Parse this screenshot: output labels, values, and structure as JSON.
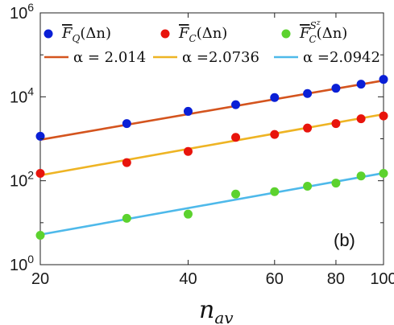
{
  "chart_data": {
    "type": "scatter",
    "scale": {
      "x": "log",
      "y": "log"
    },
    "xlim": [
      20,
      100
    ],
    "ylim": [
      1,
      1000000
    ],
    "xticks": [
      {
        "value": 20,
        "label": "20"
      },
      {
        "value": 40,
        "label": "40"
      },
      {
        "value": 60,
        "label": "60"
      },
      {
        "value": 80,
        "label": "80"
      },
      {
        "value": 100,
        "label": "100"
      }
    ],
    "yticks": [
      {
        "value": 1,
        "base": "10",
        "exp": "0"
      },
      {
        "value": 100,
        "base": "10",
        "exp": "2"
      },
      {
        "value": 10000,
        "base": "10",
        "exp": "4"
      },
      {
        "value": 1000000,
        "base": "10",
        "exp": "6"
      }
    ],
    "xlabel": {
      "main": "n",
      "sub": "av"
    },
    "panel_label": "(b)",
    "grid": false,
    "legend_placement": "top",
    "series": [
      {
        "label": {
          "main": "F",
          "sub": "Q",
          "arg": "(Δn)"
        },
        "color": "#0a1fd6",
        "x": [
          20,
          30,
          40,
          50,
          60,
          70,
          80,
          90,
          100
        ],
        "y": [
          1150,
          2300,
          4500,
          6500,
          9600,
          12000,
          16000,
          20000,
          26000
        ]
      },
      {
        "label": {
          "main": "F",
          "sub": "C",
          "arg": "(Δn)"
        },
        "color": "#e8140c",
        "x": [
          20,
          30,
          40,
          50,
          60,
          70,
          80,
          90,
          100
        ],
        "y": [
          150,
          270,
          500,
          1080,
          1270,
          1800,
          2300,
          3000,
          3500
        ]
      },
      {
        "label": {
          "main": "F",
          "sub": "C",
          "sup": "S",
          "supsub": "z",
          "arg": "(Δn)"
        },
        "color": "#5cd22e",
        "x": [
          20,
          30,
          40,
          50,
          60,
          70,
          80,
          90,
          100
        ],
        "y": [
          5,
          12.7,
          16,
          48,
          55,
          74,
          88,
          130,
          150
        ]
      }
    ],
    "fits": [
      {
        "label": "α = 2.014",
        "color": "#d4541e",
        "x": [
          20,
          100
        ],
        "y": [
          950,
          24500
        ]
      },
      {
        "label": "α =2.0736",
        "color": "#eeb424",
        "x": [
          20,
          100
        ],
        "y": [
          135,
          3840
        ]
      },
      {
        "label": "α =2.0942",
        "color": "#4eb9ea",
        "x": [
          20,
          100
        ],
        "y": [
          5.2,
          152
        ]
      }
    ]
  }
}
